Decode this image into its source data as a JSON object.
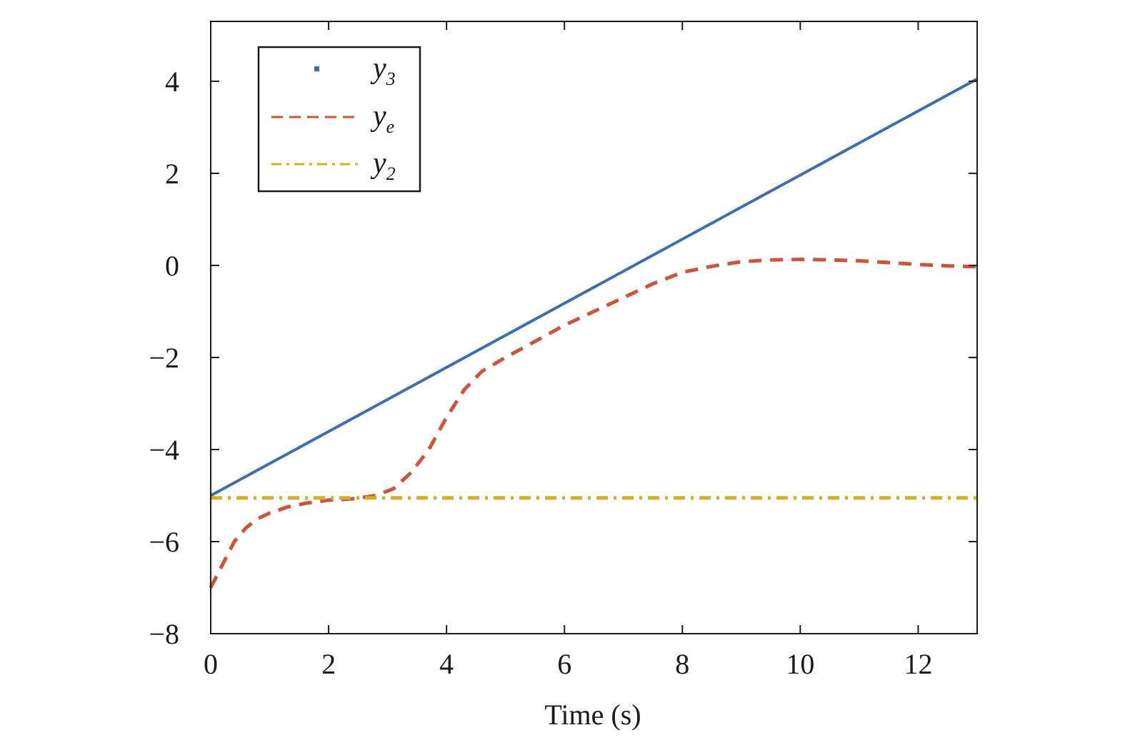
{
  "chart_data": {
    "type": "line",
    "title": "",
    "xlabel": "Time (s)",
    "ylabel": "",
    "xlim": [
      0,
      13
    ],
    "ylim": [
      -8,
      5.3
    ],
    "xticks": [
      0,
      2,
      4,
      6,
      8,
      10,
      12
    ],
    "yticks": [
      -8,
      -6,
      -4,
      -2,
      0,
      2,
      4
    ],
    "ytick_labels": [
      "−8",
      "−6",
      "−4",
      "−2",
      "0",
      "2",
      "4"
    ],
    "xtick_labels": [
      "0",
      "2",
      "4",
      "6",
      "8",
      "10",
      "12"
    ],
    "grid": false,
    "legend_position": "top-left",
    "series": [
      {
        "name_main": "y",
        "name_sub": "3",
        "style": "solid",
        "color": "#3a6fb0",
        "x": [
          0,
          13
        ],
        "y": [
          -5.0,
          4.05
        ]
      },
      {
        "name_main": "y",
        "name_sub": "e",
        "style": "dashed",
        "color": "#d0523a",
        "x": [
          0,
          0.2,
          0.4,
          0.6,
          0.8,
          1.0,
          1.3,
          1.6,
          2.0,
          2.4,
          2.8,
          3.1,
          3.4,
          3.7,
          4.0,
          4.3,
          4.6,
          5.0,
          5.5,
          6.0,
          6.5,
          7.0,
          7.5,
          8.0,
          8.5,
          9.0,
          9.5,
          10.0,
          10.5,
          11.0,
          11.5,
          12.0,
          12.5,
          13.0
        ],
        "y": [
          -7.0,
          -6.5,
          -6.0,
          -5.7,
          -5.5,
          -5.38,
          -5.25,
          -5.17,
          -5.1,
          -5.07,
          -5.0,
          -4.85,
          -4.5,
          -4.0,
          -3.3,
          -2.7,
          -2.3,
          -2.0,
          -1.65,
          -1.3,
          -1.0,
          -0.7,
          -0.4,
          -0.15,
          -0.02,
          0.08,
          0.12,
          0.13,
          0.12,
          0.1,
          0.06,
          0.02,
          -0.01,
          -0.03
        ]
      },
      {
        "name_main": "y",
        "name_sub": "2",
        "style": "dashdot",
        "color": "#d4b01e",
        "x": [
          0,
          13
        ],
        "y": [
          -5.05,
          -5.05
        ]
      }
    ]
  }
}
